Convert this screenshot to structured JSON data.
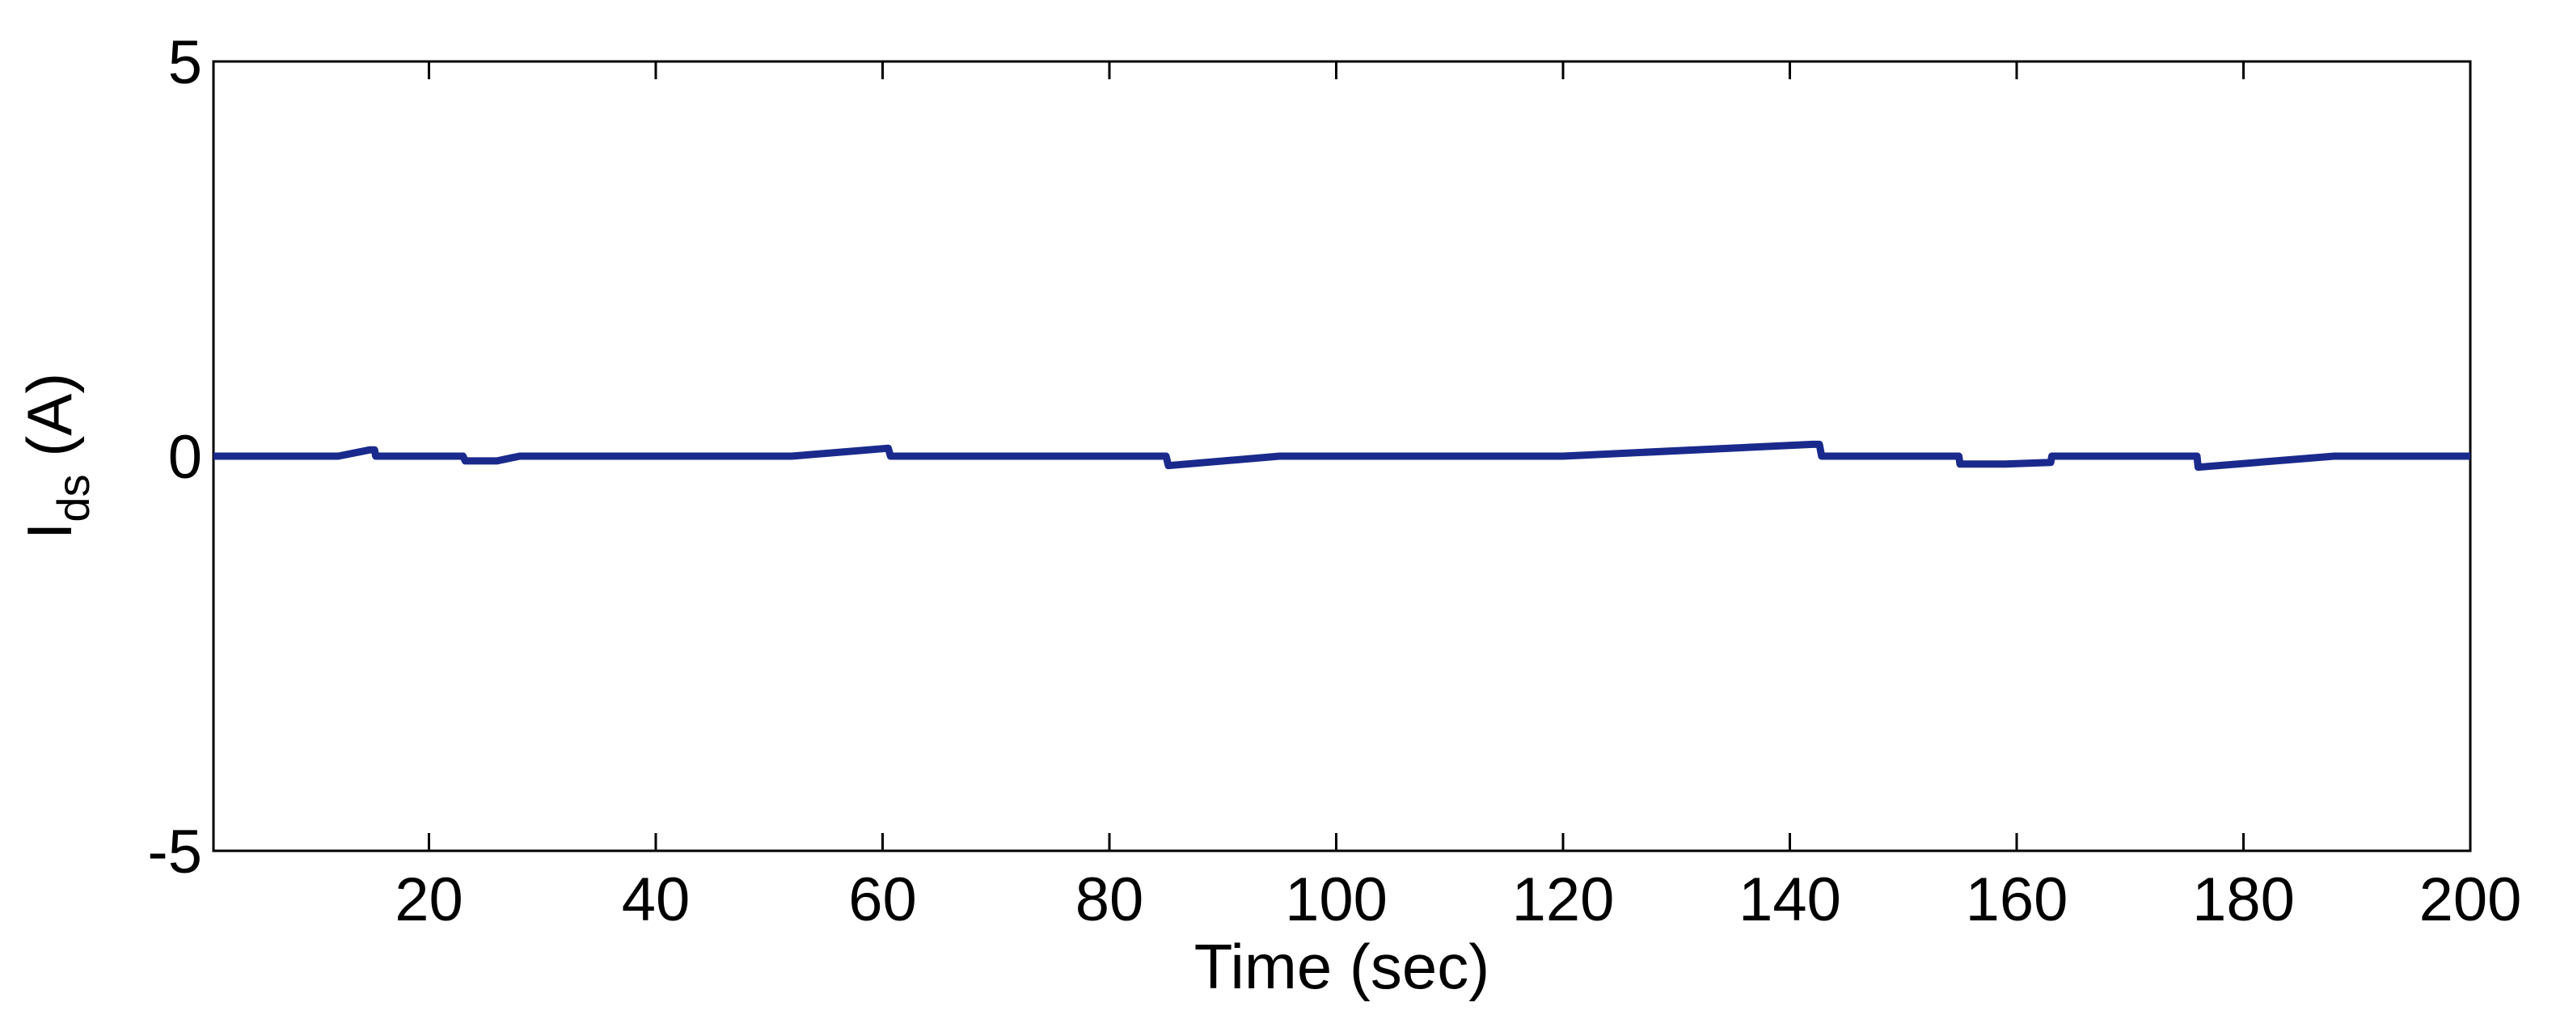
{
  "chart_data": {
    "type": "line",
    "title": "",
    "xlabel": "Time (sec)",
    "ylabel": {
      "base": "I",
      "subscript": "ds",
      "suffix": " (A)"
    },
    "xlim": [
      1,
      200
    ],
    "ylim": [
      -5,
      5
    ],
    "xticks": [
      20,
      40,
      60,
      80,
      100,
      120,
      140,
      160,
      180,
      200
    ],
    "yticks": [
      -5,
      0,
      5
    ],
    "grid": false,
    "legend": "none",
    "series": [
      {
        "color": "#1a2a8c",
        "x": [
          1,
          12,
          14.8,
          15.2,
          15.3,
          23,
          23.2,
          26,
          28,
          50,
          52,
          60.5,
          60.7,
          85,
          85.2,
          95,
          120,
          142,
          142.2,
          142.6,
          142.8,
          154.9,
          155,
          159,
          163,
          163.1,
          175.9,
          176,
          188,
          200
        ],
        "y": [
          0.0,
          0.0,
          0.08,
          0.08,
          0.0,
          0.0,
          -0.06,
          -0.06,
          0.0,
          0.0,
          0.0,
          0.1,
          0.0,
          0.0,
          -0.12,
          0.0,
          0.0,
          0.15,
          0.15,
          0.15,
          0.0,
          0.0,
          -0.1,
          -0.1,
          -0.08,
          0.0,
          0.0,
          -0.14,
          0.0,
          0.0
        ]
      }
    ]
  }
}
